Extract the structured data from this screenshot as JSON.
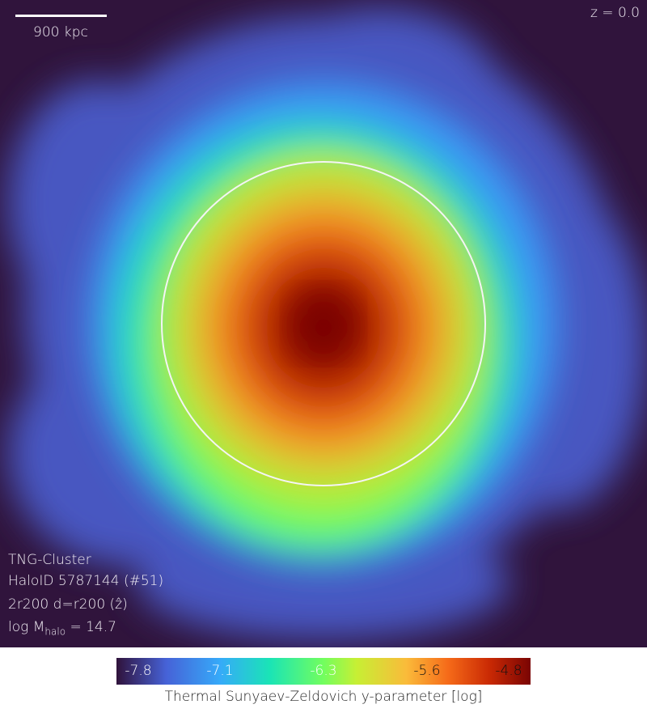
{
  "map": {
    "scale_bar_label": "900 kpc",
    "redshift_label": "z = 0.0",
    "info": {
      "simulation": "TNG-Cluster",
      "halo_id": "HaloID 5787144 (#51)",
      "projection": "2r200 d=r200 (ẑ)",
      "mass_prefix": "log M",
      "mass_sub": "halo",
      "mass_suffix": " = 14.7"
    },
    "circle": "r200"
  },
  "colorbar": {
    "label": "Thermal Sunyaev-Zeldovich y-parameter [log]",
    "colormap": "turbo",
    "range": [
      -8.1,
      -4.6
    ],
    "ticks": [
      {
        "value": "-7.8",
        "color": "#ffffff"
      },
      {
        "value": "-7.1",
        "color": "#ffffff"
      },
      {
        "value": "-6.3",
        "color": "#ffffff"
      },
      {
        "value": "-5.6",
        "color": "#111111"
      },
      {
        "value": "-4.8",
        "color": "#111111"
      }
    ]
  }
}
